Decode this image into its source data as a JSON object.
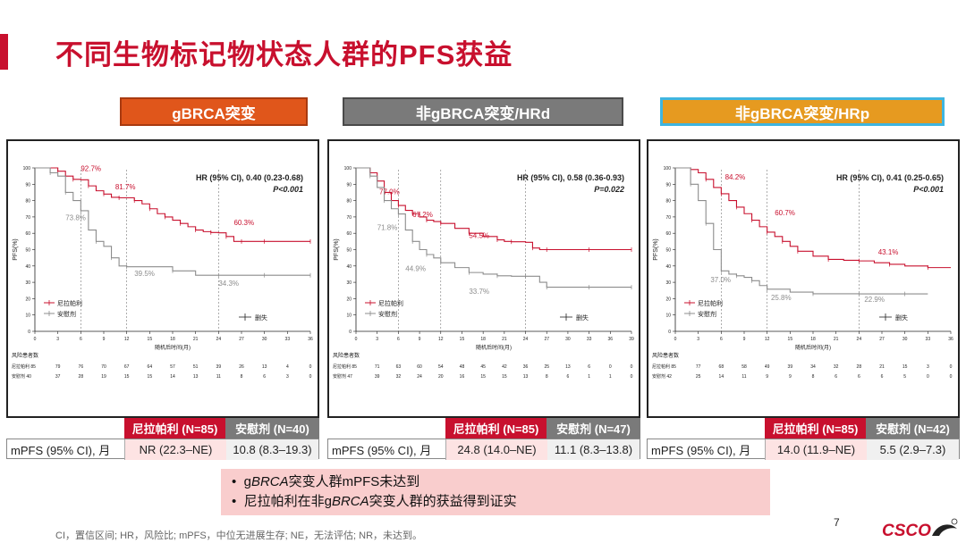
{
  "title": "不同生物标记物状态人群的PFS获益",
  "headers": [
    {
      "label": "gBRCA突变"
    },
    {
      "label": "非gBRCA突变/HRd"
    },
    {
      "label": "非gBRCA突变/HRp"
    }
  ],
  "colors": {
    "niraparib": "#c8102e",
    "placebo": "#8c8c8c",
    "accent": "#c8102e"
  },
  "chart_data": [
    {
      "type": "line",
      "ylabel": "PFS(%)",
      "xlabel": "随机后时间(月)",
      "ylim": [
        0,
        100
      ],
      "xlim": [
        0,
        36
      ],
      "xticks": [
        0,
        3,
        6,
        9,
        12,
        15,
        18,
        21,
        24,
        27,
        30,
        33,
        36
      ],
      "yticks": [
        0,
        10,
        20,
        30,
        40,
        50,
        60,
        70,
        80,
        90,
        100
      ],
      "hr_line1": "HR (95% CI), 0.40 (0.23-0.68)",
      "hr_line2": "P<0.001",
      "legend": [
        "尼拉帕利",
        "安慰剂"
      ],
      "censor_label": "删失",
      "annotations": [
        {
          "text": "92.7%",
          "x": 6,
          "y": 98,
          "series": "niraparib"
        },
        {
          "text": "81.7%",
          "x": 10.5,
          "y": 87,
          "series": "niraparib"
        },
        {
          "text": "60.3%",
          "x": 26,
          "y": 65,
          "series": "niraparib"
        },
        {
          "text": "73.8%",
          "x": 4,
          "y": 68,
          "series": "placebo"
        },
        {
          "text": "39.5%",
          "x": 13,
          "y": 34,
          "series": "placebo"
        },
        {
          "text": "34.3%",
          "x": 24,
          "y": 28,
          "series": "placebo"
        }
      ],
      "series": [
        {
          "name": "尼拉帕利",
          "color": "#c8102e",
          "x": [
            0,
            3,
            4,
            5,
            6,
            7,
            8,
            9,
            10,
            11,
            12,
            13,
            14,
            15,
            16,
            17,
            18,
            19,
            20,
            21,
            22,
            23,
            24,
            25,
            26,
            27,
            28,
            30,
            33,
            36
          ],
          "y": [
            100,
            98,
            95,
            93,
            92.7,
            89,
            86,
            84,
            82,
            81.7,
            81.7,
            80,
            78,
            75,
            72,
            70,
            68,
            66,
            64,
            62,
            61,
            60.5,
            60.3,
            58,
            55,
            55,
            55,
            55,
            55,
            55
          ]
        },
        {
          "name": "安慰剂",
          "color": "#8c8c8c",
          "x": [
            0,
            2,
            3,
            4,
            5,
            6,
            7,
            8,
            9,
            10,
            11,
            12,
            15,
            18,
            21,
            24,
            27,
            30,
            33,
            36
          ],
          "y": [
            100,
            97,
            95,
            85,
            80,
            73.8,
            62,
            55,
            52,
            45,
            40,
            39.5,
            39.5,
            37,
            34.3,
            34.3,
            34.3,
            34.3,
            34.3,
            34.3
          ]
        }
      ],
      "risk_title": "风险患者数",
      "risk_rows": [
        {
          "name": "尼拉帕利",
          "n": 85,
          "values": [
            85,
            79,
            76,
            70,
            67,
            64,
            57,
            51,
            39,
            26,
            13,
            4,
            0
          ]
        },
        {
          "name": "安慰剂",
          "n": 40,
          "values": [
            40,
            37,
            28,
            19,
            15,
            15,
            14,
            13,
            11,
            8,
            6,
            3,
            0
          ]
        }
      ]
    },
    {
      "type": "line",
      "ylabel": "PFS(%)",
      "xlabel": "随机后时间(月)",
      "ylim": [
        0,
        100
      ],
      "xlim": [
        0,
        39
      ],
      "xticks": [
        0,
        3,
        6,
        9,
        12,
        15,
        18,
        21,
        24,
        27,
        30,
        33,
        36,
        39
      ],
      "yticks": [
        0,
        10,
        20,
        30,
        40,
        50,
        60,
        70,
        80,
        90,
        100
      ],
      "hr_line1": "HR (95% CI), 0.58 (0.36-0.93)",
      "hr_line2": "P=0.022",
      "legend": [
        "尼拉帕利",
        "安慰剂"
      ],
      "censor_label": "删失",
      "annotations": [
        {
          "text": "77.0%",
          "x": 3.3,
          "y": 84,
          "series": "niraparib"
        },
        {
          "text": "67.2%",
          "x": 8,
          "y": 70,
          "series": "niraparib"
        },
        {
          "text": "54.5%",
          "x": 16,
          "y": 57,
          "series": "niraparib"
        },
        {
          "text": "71.8%",
          "x": 3,
          "y": 62,
          "series": "placebo"
        },
        {
          "text": "44.9%",
          "x": 7,
          "y": 37,
          "series": "placebo"
        },
        {
          "text": "33.7%",
          "x": 16,
          "y": 23,
          "series": "placebo"
        }
      ],
      "series": [
        {
          "name": "尼拉帕利",
          "color": "#c8102e",
          "x": [
            0,
            2,
            3,
            4,
            5,
            6,
            7,
            8,
            9,
            10,
            11,
            12,
            14,
            16,
            18,
            20,
            21,
            22,
            24,
            25,
            26,
            27,
            30,
            33,
            36,
            39
          ],
          "y": [
            100,
            97,
            92,
            85,
            80,
            77,
            74,
            72,
            70,
            68,
            67.2,
            66,
            63,
            60,
            58,
            56,
            55,
            54.8,
            54.5,
            51,
            50,
            50,
            50,
            50,
            50,
            50
          ]
        },
        {
          "name": "安慰剂",
          "color": "#8c8c8c",
          "x": [
            0,
            2,
            3,
            4,
            5,
            6,
            7,
            8,
            9,
            10,
            11,
            12,
            14,
            16,
            18,
            20,
            22,
            24,
            26,
            27,
            30,
            33,
            36,
            39
          ],
          "y": [
            100,
            95,
            88,
            80,
            75,
            71.8,
            62,
            55,
            50,
            47,
            44.9,
            42,
            39,
            36,
            35,
            34,
            33.7,
            33.7,
            30,
            27,
            27,
            27,
            27,
            27
          ]
        }
      ],
      "risk_title": "风险患者数",
      "risk_rows": [
        {
          "name": "尼拉帕利",
          "n": 85,
          "values": [
            85,
            71,
            63,
            60,
            54,
            48,
            45,
            42,
            36,
            25,
            13,
            6,
            0,
            0
          ]
        },
        {
          "name": "安慰剂",
          "n": 47,
          "values": [
            47,
            39,
            32,
            24,
            20,
            16,
            15,
            15,
            13,
            8,
            6,
            1,
            1,
            0
          ]
        }
      ]
    },
    {
      "type": "line",
      "ylabel": "PFS(%)",
      "xlabel": "随机后时间(月)",
      "ylim": [
        0,
        100
      ],
      "xlim": [
        0,
        36
      ],
      "xticks": [
        0,
        3,
        6,
        9,
        12,
        15,
        18,
        21,
        24,
        27,
        30,
        33,
        36
      ],
      "yticks": [
        0,
        10,
        20,
        30,
        40,
        50,
        60,
        70,
        80,
        90,
        100
      ],
      "hr_line1": "HR (95% CI), 0.41 (0.25-0.65)",
      "hr_line2": "P<0.001",
      "legend": [
        "尼拉帕利",
        "安慰剂"
      ],
      "censor_label": "删失",
      "annotations": [
        {
          "text": "84.2%",
          "x": 6.5,
          "y": 93,
          "series": "niraparib"
        },
        {
          "text": "60.7%",
          "x": 13,
          "y": 71,
          "series": "niraparib"
        },
        {
          "text": "43.1%",
          "x": 26.5,
          "y": 47,
          "series": "niraparib"
        },
        {
          "text": "37.0%",
          "x": 4.6,
          "y": 30,
          "series": "placebo"
        },
        {
          "text": "25.8%",
          "x": 12.5,
          "y": 19,
          "series": "placebo"
        },
        {
          "text": "22.9%",
          "x": 24.7,
          "y": 18,
          "series": "placebo"
        }
      ],
      "series": [
        {
          "name": "尼拉帕利",
          "color": "#c8102e",
          "x": [
            0,
            2,
            3,
            4,
            5,
            6,
            7,
            8,
            9,
            10,
            11,
            12,
            13,
            14,
            15,
            16,
            18,
            20,
            22,
            24,
            26,
            28,
            30,
            33,
            36
          ],
          "y": [
            100,
            99,
            97,
            93,
            88,
            84.2,
            80,
            76,
            72,
            68,
            64,
            60.7,
            58,
            55,
            52,
            49,
            46,
            44,
            43.5,
            43.1,
            42,
            41,
            40,
            39,
            39
          ]
        },
        {
          "name": "安慰剂",
          "color": "#8c8c8c",
          "x": [
            0,
            2,
            3,
            4,
            5,
            6,
            7,
            8,
            9,
            10,
            11,
            12,
            15,
            18,
            21,
            24,
            27,
            30,
            33
          ],
          "y": [
            100,
            90,
            80,
            66,
            50,
            37,
            35,
            34,
            33,
            31,
            28,
            25.8,
            24,
            23,
            23,
            22.9,
            22.9,
            22.9,
            22.9
          ]
        }
      ],
      "risk_title": "风险患者数",
      "risk_rows": [
        {
          "name": "尼拉帕利",
          "n": 85,
          "values": [
            85,
            77,
            68,
            58,
            49,
            39,
            34,
            32,
            28,
            21,
            15,
            3,
            0
          ]
        },
        {
          "name": "安慰剂",
          "n": 42,
          "values": [
            42,
            25,
            14,
            11,
            9,
            9,
            8,
            6,
            6,
            6,
            5,
            0,
            0
          ]
        }
      ]
    }
  ],
  "tables": [
    {
      "col1": "尼拉帕利 (N=85)",
      "col2": "安慰剂 (N=40)",
      "row_label": "mPFS (95% CI), 月",
      "v1": "NR (22.3–NE)",
      "v2": "10.8 (8.3–19.3)"
    },
    {
      "col1": "尼拉帕利 (N=85)",
      "col2": "安慰剂 (N=47)",
      "row_label": "mPFS (95% CI), 月",
      "v1": "24.8 (14.0–NE)",
      "v2": "11.1 (8.3–13.8)"
    },
    {
      "col1": "尼拉帕利 (N=85)",
      "col2": "安慰剂 (N=42)",
      "row_label": "mPFS (95% CI), 月",
      "v1": "14.0 (11.9–NE)",
      "v2": "5.5 (2.9–7.3)"
    }
  ],
  "callout": {
    "b1_pre": "g",
    "b1_it": "BRCA",
    "b1_post": "突变人群mPFS未达到",
    "b2_pre": "尼拉帕利在非g",
    "b2_it": "BRCA",
    "b2_post": "突变人群的获益得到证实"
  },
  "footnote": "CI，置信区间; HR，风险比; mPFS，中位无进展生存; NE，无法评估; NR，未达到。",
  "page_number": "7",
  "logo_text": "CSCO"
}
